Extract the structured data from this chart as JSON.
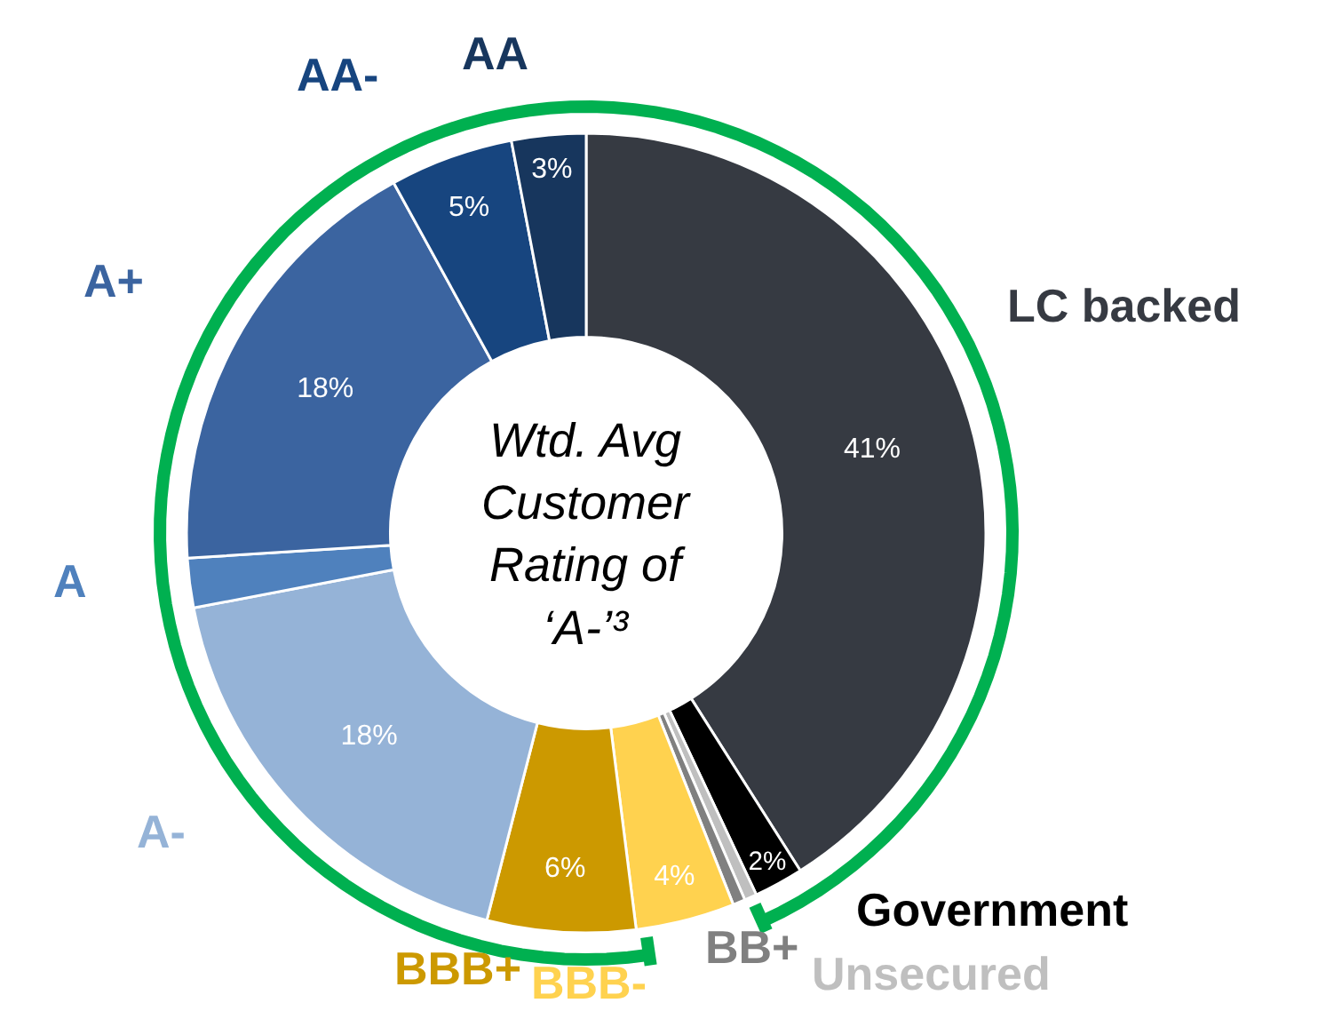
{
  "chart_data": {
    "type": "donut",
    "categories": [
      "LC backed",
      "Government",
      "Unsecured",
      "BB+",
      "BBB-",
      "BBB+",
      "A-",
      "A",
      "A+",
      "AA-",
      "AA"
    ],
    "values": [
      41,
      2,
      0.5,
      0.5,
      4,
      6,
      18,
      2,
      18,
      5,
      3
    ],
    "colors": [
      "#363a42",
      "#000000",
      "#bfbfbf",
      "#808080",
      "#ffd24f",
      "#cc9900",
      "#95b3d7",
      "#4f81bd",
      "#3b64a0",
      "#17457f",
      "#17365d"
    ],
    "value_labels": [
      "41%",
      "2%",
      null,
      null,
      "4%",
      "6%",
      "18%",
      null,
      "18%",
      "5%",
      "3%"
    ],
    "annotations": [
      "Wtd. Avg Customer Rating of ‘A-’³"
    ],
    "legend": false
  }
}
